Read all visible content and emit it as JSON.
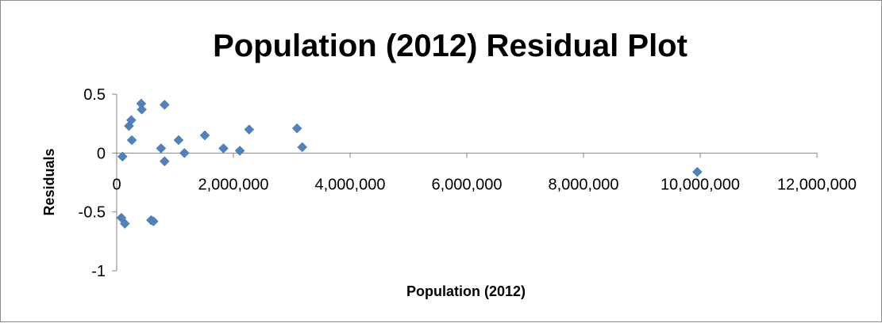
{
  "chart_data": {
    "type": "scatter",
    "title": "Population (2012) Residual Plot",
    "xlabel": "Population (2012)",
    "ylabel": "Residuals",
    "xlim": [
      0,
      12000000
    ],
    "ylim": [
      -1,
      0.5
    ],
    "x_ticks": [
      0,
      2000000,
      4000000,
      6000000,
      8000000,
      10000000,
      12000000
    ],
    "x_tick_labels": [
      "0",
      "2,000,000",
      "4,000,000",
      "6,000,000",
      "8,000,000",
      "10,000,000",
      "12,000,000"
    ],
    "y_ticks": [
      0.5,
      0,
      -0.5,
      -1
    ],
    "y_tick_labels": [
      "0.5",
      "0",
      "-0.5",
      "-1"
    ],
    "grid": false,
    "legend": "none",
    "marker_color": "#4f81bd",
    "axis_color": "#868686",
    "points": [
      {
        "x": 80000,
        "y": -0.55
      },
      {
        "x": 100000,
        "y": -0.03
      },
      {
        "x": 140000,
        "y": -0.6
      },
      {
        "x": 210000,
        "y": 0.23
      },
      {
        "x": 250000,
        "y": 0.28
      },
      {
        "x": 260000,
        "y": 0.11
      },
      {
        "x": 420000,
        "y": 0.42
      },
      {
        "x": 430000,
        "y": 0.37
      },
      {
        "x": 590000,
        "y": -0.57
      },
      {
        "x": 630000,
        "y": -0.58
      },
      {
        "x": 760000,
        "y": 0.04
      },
      {
        "x": 820000,
        "y": 0.41
      },
      {
        "x": 820000,
        "y": -0.07
      },
      {
        "x": 1060000,
        "y": 0.11
      },
      {
        "x": 1160000,
        "y": 0.0
      },
      {
        "x": 1510000,
        "y": 0.15
      },
      {
        "x": 1830000,
        "y": 0.04
      },
      {
        "x": 2110000,
        "y": 0.02
      },
      {
        "x": 2270000,
        "y": 0.2
      },
      {
        "x": 3090000,
        "y": 0.21
      },
      {
        "x": 3180000,
        "y": 0.05
      },
      {
        "x": 9950000,
        "y": -0.16
      }
    ]
  }
}
